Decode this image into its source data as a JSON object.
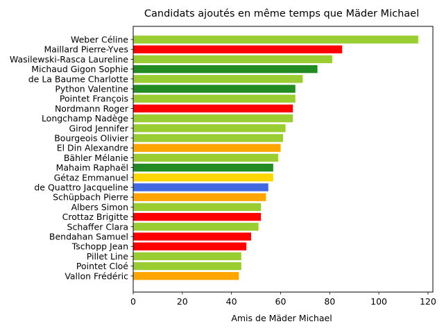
{
  "chart_data": {
    "type": "bar",
    "orientation": "horizontal",
    "title": "Candidats ajoutés en même temps que Mäder Michael",
    "xlabel": "Amis de Mäder Michael",
    "ylabel": "",
    "xlim": [
      0,
      122
    ],
    "xticks": [
      "0",
      "20",
      "40",
      "60",
      "80",
      "100",
      "120"
    ],
    "xtick_values": [
      0,
      20,
      40,
      60,
      80,
      100,
      120
    ],
    "grid": false,
    "categories": [
      "Weber Céline",
      "Maillard Pierre-Yves",
      "Wasilewski-Rasca Laureline",
      "Michaud Gigon Sophie",
      "de La Baume Charlotte",
      "Python Valentine",
      "Pointet François",
      "Nordmann Roger",
      "Longchamp Nadège",
      "Girod Jennifer",
      "Bourgeois Olivier",
      "El Din Alexandre",
      "Bähler Mélanie",
      "Mahaim Raphaël",
      "Gétaz Emmanuel",
      "de Quattro Jacqueline",
      "Schüpbach Pierre",
      "Albers Simon",
      "Crottaz Brigitte",
      "Schaffer Clara",
      "Bendahan Samuel",
      "Tschopp Jean",
      "Pillet Line",
      "Pointet Cloé",
      "Vallon Frédéric"
    ],
    "values": [
      116,
      85,
      81,
      75,
      69,
      66,
      66,
      65,
      65,
      62,
      61,
      60,
      59,
      57,
      57,
      55,
      54,
      52,
      52,
      51,
      48,
      46,
      44,
      44,
      43
    ],
    "colors": [
      "#9acd32",
      "#ff0000",
      "#9acd32",
      "#228b22",
      "#9acd32",
      "#228b22",
      "#9acd32",
      "#ff0000",
      "#9acd32",
      "#9acd32",
      "#9acd32",
      "#ffa500",
      "#9acd32",
      "#228b22",
      "#ffd700",
      "#4169e1",
      "#ffa500",
      "#9acd32",
      "#ff0000",
      "#9acd32",
      "#ff0000",
      "#ff0000",
      "#9acd32",
      "#9acd32",
      "#ffa500"
    ]
  }
}
